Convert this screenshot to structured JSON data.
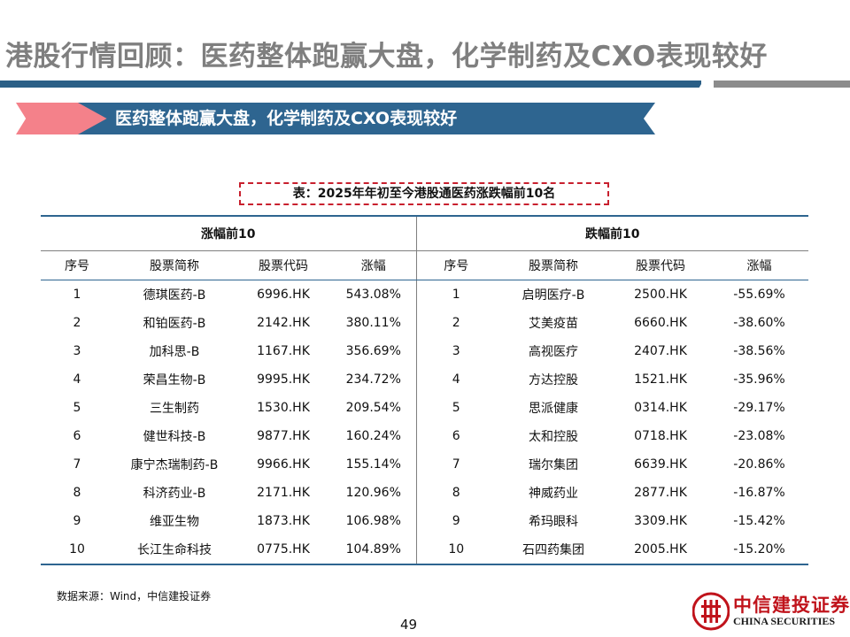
{
  "page": {
    "title": "港股行情回顾：医药整体跑赢大盘，化学制药及CXO表现较好",
    "banner": "医药整体跑赢大盘，化学制药及CXO表现较好",
    "table_caption": "表：2025年年初至今港股通医药涨跌幅前10名",
    "source": "数据来源：Wind，中信建投证券",
    "page_number": "49"
  },
  "logo": {
    "cn": "中信建投证券",
    "en": "CHINA SECURITIES"
  },
  "table": {
    "gainers_label": "涨幅前10",
    "losers_label": "跌幅前10",
    "columns": [
      "序号",
      "股票简称",
      "股票代码",
      "涨幅"
    ],
    "gainers": [
      {
        "rank": "1",
        "name": "德琪医药-B",
        "code": "6996.HK",
        "change": "543.08%"
      },
      {
        "rank": "2",
        "name": "和铂医药-B",
        "code": "2142.HK",
        "change": "380.11%"
      },
      {
        "rank": "3",
        "name": "加科思-B",
        "code": "1167.HK",
        "change": "356.69%"
      },
      {
        "rank": "4",
        "name": "荣昌生物-B",
        "code": "9995.HK",
        "change": "234.72%"
      },
      {
        "rank": "5",
        "name": "三生制药",
        "code": "1530.HK",
        "change": "209.54%"
      },
      {
        "rank": "6",
        "name": "健世科技-B",
        "code": "9877.HK",
        "change": "160.24%"
      },
      {
        "rank": "7",
        "name": "康宁杰瑞制药-B",
        "code": "9966.HK",
        "change": "155.14%"
      },
      {
        "rank": "8",
        "name": "科济药业-B",
        "code": "2171.HK",
        "change": "120.96%"
      },
      {
        "rank": "9",
        "name": "维亚生物",
        "code": "1873.HK",
        "change": "106.98%"
      },
      {
        "rank": "10",
        "name": "长江生命科技",
        "code": "0775.HK",
        "change": "104.89%"
      }
    ],
    "losers": [
      {
        "rank": "1",
        "name": "启明医疗-B",
        "code": "2500.HK",
        "change": "-55.69%"
      },
      {
        "rank": "2",
        "name": "艾美疫苗",
        "code": "6660.HK",
        "change": "-38.60%"
      },
      {
        "rank": "3",
        "name": "高视医疗",
        "code": "2407.HK",
        "change": "-38.56%"
      },
      {
        "rank": "4",
        "name": "方达控股",
        "code": "1521.HK",
        "change": "-35.96%"
      },
      {
        "rank": "5",
        "name": "思派健康",
        "code": "0314.HK",
        "change": "-29.17%"
      },
      {
        "rank": "6",
        "name": "太和控股",
        "code": "0718.HK",
        "change": "-23.08%"
      },
      {
        "rank": "7",
        "name": "瑞尔集团",
        "code": "6639.HK",
        "change": "-20.86%"
      },
      {
        "rank": "8",
        "name": "神威药业",
        "code": "2877.HK",
        "change": "-16.87%"
      },
      {
        "rank": "9",
        "name": "希玛眼科",
        "code": "3309.HK",
        "change": "-15.42%"
      },
      {
        "rank": "10",
        "name": "石四药集团",
        "code": "2005.HK",
        "change": "-15.20%"
      }
    ]
  }
}
